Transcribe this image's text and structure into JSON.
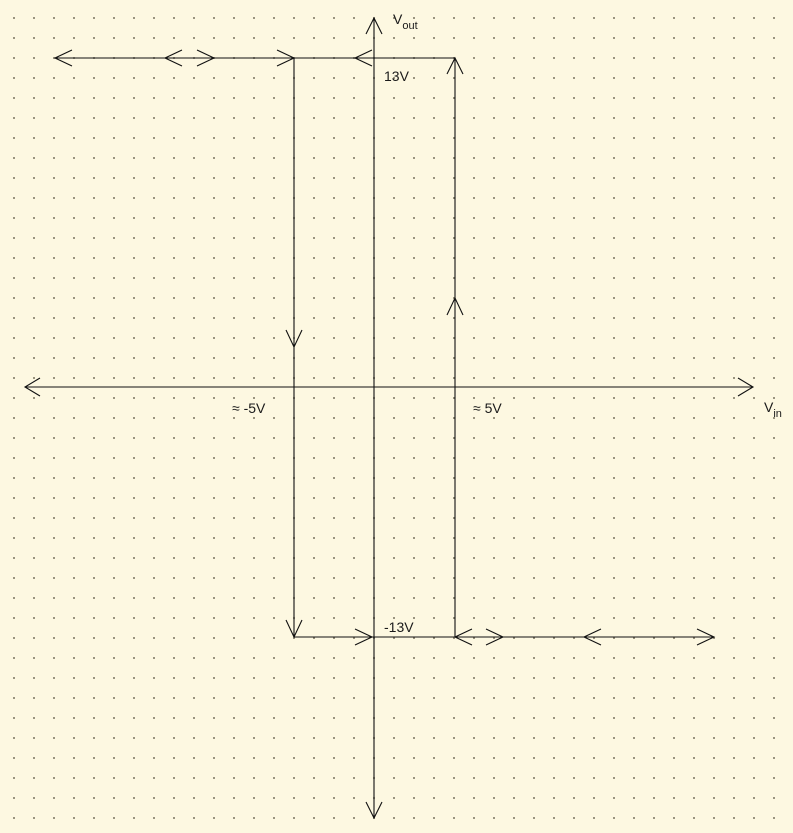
{
  "colors": {
    "background": "#fdf8e1",
    "line": "#111111",
    "dot": "#8a8470"
  },
  "axes": {
    "y_label_main": "V",
    "y_label_sub": "out",
    "x_label_main": "V",
    "x_label_sub": "in"
  },
  "labels": {
    "v_high": "13V",
    "v_low": "-13V",
    "threshold_neg": "≈ -5V",
    "threshold_pos": "≈ 5V"
  }
}
